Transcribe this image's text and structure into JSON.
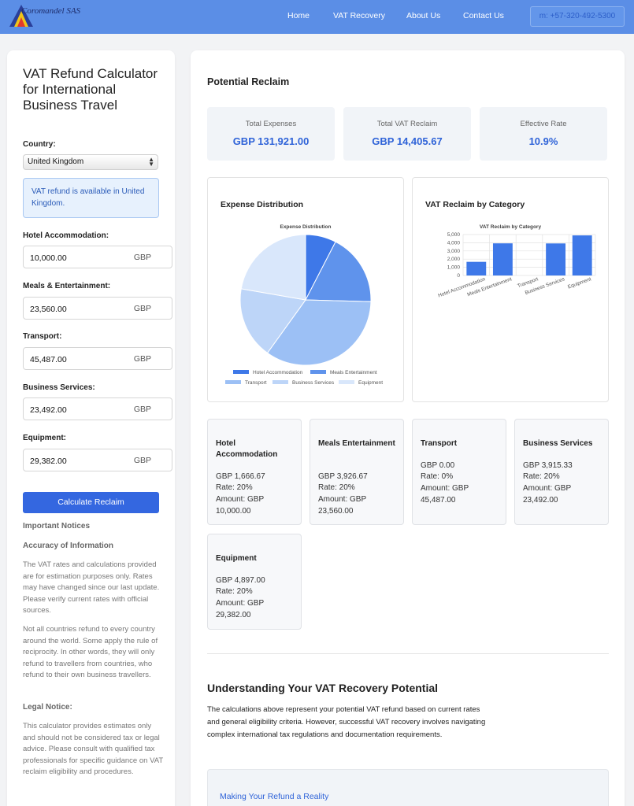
{
  "header": {
    "logo_text": "Coromandel SAS",
    "nav": [
      "Home",
      "VAT Recovery",
      "About Us",
      "Contact Us"
    ],
    "phone": "m: +57-320-492-5300"
  },
  "sidebar": {
    "title": "VAT Refund Calculator for International Business Travel",
    "country_label": "Country:",
    "country_value": "United Kingdom",
    "info": "VAT refund is available in United Kingdom.",
    "fields": [
      {
        "label": "Hotel Accommodation:",
        "value": "10,000.00",
        "currency": "GBP"
      },
      {
        "label": "Meals & Entertainment:",
        "value": "23,560.00",
        "currency": "GBP"
      },
      {
        "label": "Transport:",
        "value": "45,487.00",
        "currency": "GBP"
      },
      {
        "label": "Business Services:",
        "value": "23,492.00",
        "currency": "GBP"
      },
      {
        "label": "Equipment:",
        "value": "29,382.00",
        "currency": "GBP"
      }
    ],
    "calculate_label": "Calculate Reclaim",
    "notices_title": "Important Notices",
    "accuracy_title": "Accuracy of Information",
    "accuracy_p1": "The VAT rates and calculations provided are for estimation purposes only. Rates may have changed since our last update. Please verify current rates with official sources.",
    "accuracy_p2": "Not all countries refund to every country around the world. Some apply the rule of reciprocity. In other words, they will only refund to travellers from countries, who refund to their own business travellers.",
    "legal_title": "Legal Notice:",
    "legal_p": "This calculator provides estimates only and should not be considered tax or legal advice. Please consult with qualified tax professionals for specific guidance on VAT reclaim eligibility and procedures."
  },
  "main": {
    "title": "Potential Reclaim",
    "stats": [
      {
        "label": "Total Expenses",
        "value": "GBP 131,921.00"
      },
      {
        "label": "Total VAT Reclaim",
        "value": "GBP 14,405.67"
      },
      {
        "label": "Effective Rate",
        "value": "10.9%"
      }
    ],
    "categories": [
      {
        "name": "Hotel Accommodation",
        "vat": "GBP 1,666.67",
        "rate": "Rate: 20%",
        "amount": "Amount: GBP 10,000.00"
      },
      {
        "name": "Meals Entertainment",
        "vat": "GBP 3,926.67",
        "rate": "Rate: 20%",
        "amount": "Amount: GBP 23,560.00"
      },
      {
        "name": "Transport",
        "vat": "GBP 0.00",
        "rate": "Rate: 0%",
        "amount": "Amount: GBP 45,487.00"
      },
      {
        "name": "Business Services",
        "vat": "GBP 3,915.33",
        "rate": "Rate: 20%",
        "amount": "Amount: GBP 23,492.00"
      },
      {
        "name": "Equipment",
        "vat": "GBP 4,897.00",
        "rate": "Rate: 20%",
        "amount": "Amount: GBP 29,382.00"
      }
    ],
    "understanding_title": "Understanding Your VAT Recovery Potential",
    "understanding_p": "The calculations above represent your potential VAT refund based on current rates and general eligibility criteria. However, successful VAT recovery involves navigating complex international tax regulations and documentation requirements.",
    "refund_box_title": "Making Your Refund a Reality"
  },
  "chart_data": [
    {
      "type": "pie",
      "card_title": "Expense Distribution",
      "title": "Expense Distribution",
      "categories": [
        "Hotel Accommodation",
        "Meals Entertainment",
        "Transport",
        "Business Services",
        "Equipment"
      ],
      "values": [
        10000,
        23560,
        45487,
        23492,
        29382
      ],
      "colors": [
        "#3e78e8",
        "#5f93ec",
        "#9cc0f5",
        "#bdd5f8",
        "#d9e7fb"
      ],
      "legend": "bottom"
    },
    {
      "type": "bar",
      "card_title": "VAT Reclaim by Category",
      "title": "VAT Reclaim by Category",
      "categories": [
        "Hotel Accommodation",
        "Meals Entertainment",
        "Transport",
        "Business Services",
        "Equipment"
      ],
      "values": [
        1666.67,
        3926.67,
        0,
        3915.33,
        4897
      ],
      "yticks": [
        "5,000",
        "4,000",
        "3,000",
        "2,000",
        "1,000",
        "0"
      ],
      "ylim": [
        0,
        5000
      ],
      "color": "#3e78e8",
      "grid": true
    }
  ]
}
